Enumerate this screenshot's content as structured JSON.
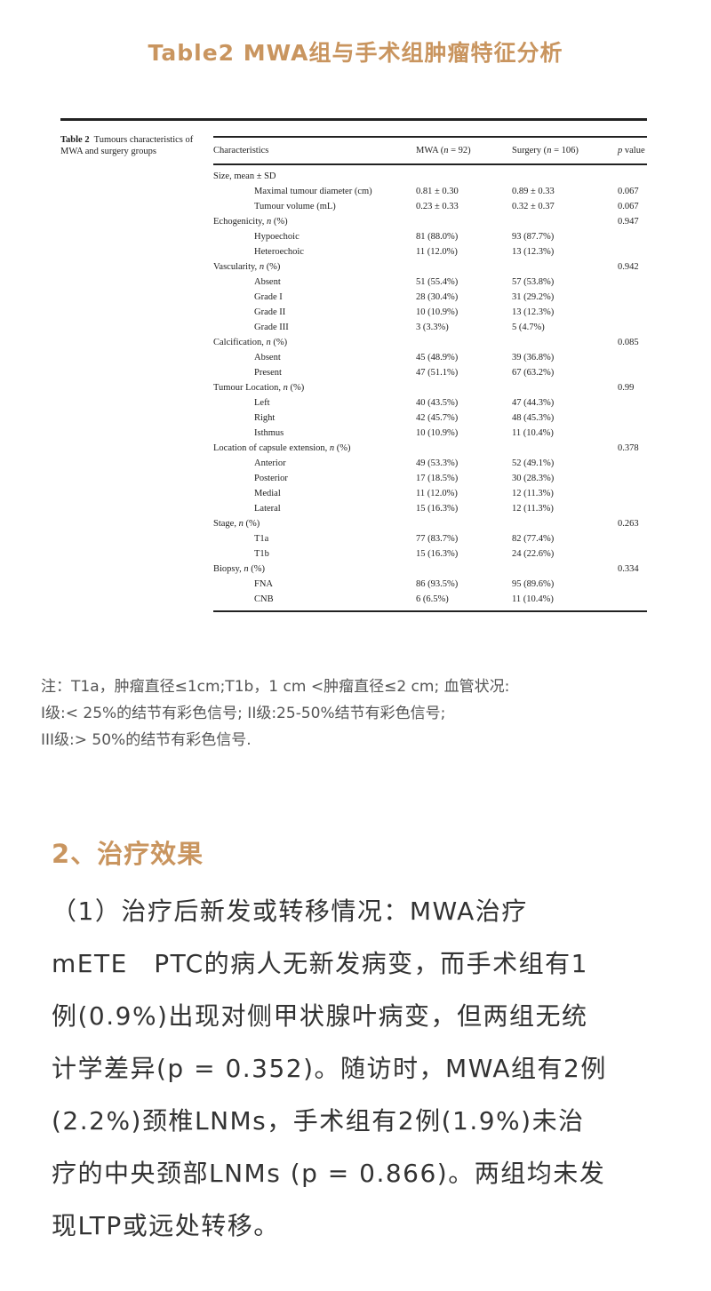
{
  "page_title": "Table2 MWA组与手术组肿瘤特征分析",
  "table": {
    "caption_label": "Table 2",
    "caption_text": "Tumours characteristics of MWA and surgery groups",
    "headers": [
      "Characteristics",
      "MWA (n = 92)",
      "Surgery (n = 106)",
      "p value"
    ],
    "rows": [
      {
        "label": "Size, mean ± SD",
        "mwa": "",
        "surgery": "",
        "p": "",
        "sub": false
      },
      {
        "label": "Maximal tumour diameter (cm)",
        "mwa": "0.81 ± 0.30",
        "surgery": "0.89 ± 0.33",
        "p": "0.067",
        "sub": true
      },
      {
        "label": "Tumour volume (mL)",
        "mwa": "0.23 ± 0.33",
        "surgery": "0.32 ± 0.37",
        "p": "0.067",
        "sub": true
      },
      {
        "label": "Echogenicity, n (%)",
        "mwa": "",
        "surgery": "",
        "p": "0.947",
        "sub": false
      },
      {
        "label": "Hypoechoic",
        "mwa": "81 (88.0%)",
        "surgery": "93 (87.7%)",
        "p": "",
        "sub": true
      },
      {
        "label": "Heteroechoic",
        "mwa": "11 (12.0%)",
        "surgery": "13 (12.3%)",
        "p": "",
        "sub": true
      },
      {
        "label": "Vascularity, n (%)",
        "mwa": "",
        "surgery": "",
        "p": "0.942",
        "sub": false
      },
      {
        "label": "Absent",
        "mwa": "51 (55.4%)",
        "surgery": "57 (53.8%)",
        "p": "",
        "sub": true
      },
      {
        "label": "Grade I",
        "mwa": "28 (30.4%)",
        "surgery": "31 (29.2%)",
        "p": "",
        "sub": true
      },
      {
        "label": "Grade II",
        "mwa": "10 (10.9%)",
        "surgery": "13 (12.3%)",
        "p": "",
        "sub": true
      },
      {
        "label": "Grade III",
        "mwa": "3 (3.3%)",
        "surgery": "5 (4.7%)",
        "p": "",
        "sub": true
      },
      {
        "label": "Calcification, n (%)",
        "mwa": "",
        "surgery": "",
        "p": "0.085",
        "sub": false
      },
      {
        "label": "Absent",
        "mwa": "45 (48.9%)",
        "surgery": "39 (36.8%)",
        "p": "",
        "sub": true
      },
      {
        "label": "Present",
        "mwa": "47 (51.1%)",
        "surgery": "67 (63.2%)",
        "p": "",
        "sub": true
      },
      {
        "label": "Tumour Location, n (%)",
        "mwa": "",
        "surgery": "",
        "p": "0.99",
        "sub": false
      },
      {
        "label": "Left",
        "mwa": "40 (43.5%)",
        "surgery": "47 (44.3%)",
        "p": "",
        "sub": true
      },
      {
        "label": "Right",
        "mwa": "42 (45.7%)",
        "surgery": "48 (45.3%)",
        "p": "",
        "sub": true
      },
      {
        "label": "Isthmus",
        "mwa": "10 (10.9%)",
        "surgery": "11 (10.4%)",
        "p": "",
        "sub": true
      },
      {
        "label": "Location of capsule extension, n (%)",
        "mwa": "",
        "surgery": "",
        "p": "0.378",
        "sub": false
      },
      {
        "label": "Anterior",
        "mwa": "49 (53.3%)",
        "surgery": "52 (49.1%)",
        "p": "",
        "sub": true
      },
      {
        "label": "Posterior",
        "mwa": "17 (18.5%)",
        "surgery": "30 (28.3%)",
        "p": "",
        "sub": true
      },
      {
        "label": "Medial",
        "mwa": "11 (12.0%)",
        "surgery": "12 (11.3%)",
        "p": "",
        "sub": true
      },
      {
        "label": "Lateral",
        "mwa": "15 (16.3%)",
        "surgery": "12 (11.3%)",
        "p": "",
        "sub": true
      },
      {
        "label": "Stage, n (%)",
        "mwa": "",
        "surgery": "",
        "p": "0.263",
        "sub": false
      },
      {
        "label": "T1a",
        "mwa": "77 (83.7%)",
        "surgery": "82 (77.4%)",
        "p": "",
        "sub": true
      },
      {
        "label": "T1b",
        "mwa": "15 (16.3%)",
        "surgery": "24 (22.6%)",
        "p": "",
        "sub": true
      },
      {
        "label": "Biopsy, n (%)",
        "mwa": "",
        "surgery": "",
        "p": "0.334",
        "sub": false
      },
      {
        "label": "FNA",
        "mwa": "86 (93.5%)",
        "surgery": "95 (89.6%)",
        "p": "",
        "sub": true
      },
      {
        "label": "CNB",
        "mwa": "6 (6.5%)",
        "surgery": "11 (10.4%)",
        "p": "",
        "sub": true
      }
    ]
  },
  "notes": [
    "注：T1a，肿瘤直径≤1cm;T1b，1 cm <肿瘤直径≤2 cm; 血管状况:",
    "I级:< 25%的结节有彩色信号; II级:25-50%结节有彩色信号;",
    "III级:> 50%的结节有彩色信号."
  ],
  "section_heading": "2、治疗效果",
  "body_lines": [
    "（1）治疗后新发或转移情况：MWA治疗",
    "mETE　PTC的病人无新发病变，而手术组有1",
    "例(0.9%)出现对侧甲状腺叶病变，但两组无统",
    "计学差异(p = 0.352)。随访时，MWA组有2例",
    "(2.2%)颈椎LNMs，手术组有2例(1.9%)未治",
    "疗的中央颈部LNMs (p = 0.866)。两组均未发",
    "现LTP或远处转移。"
  ],
  "colors": {
    "accent": "#c9955f",
    "body_text": "#333333",
    "note_text": "#555555"
  }
}
